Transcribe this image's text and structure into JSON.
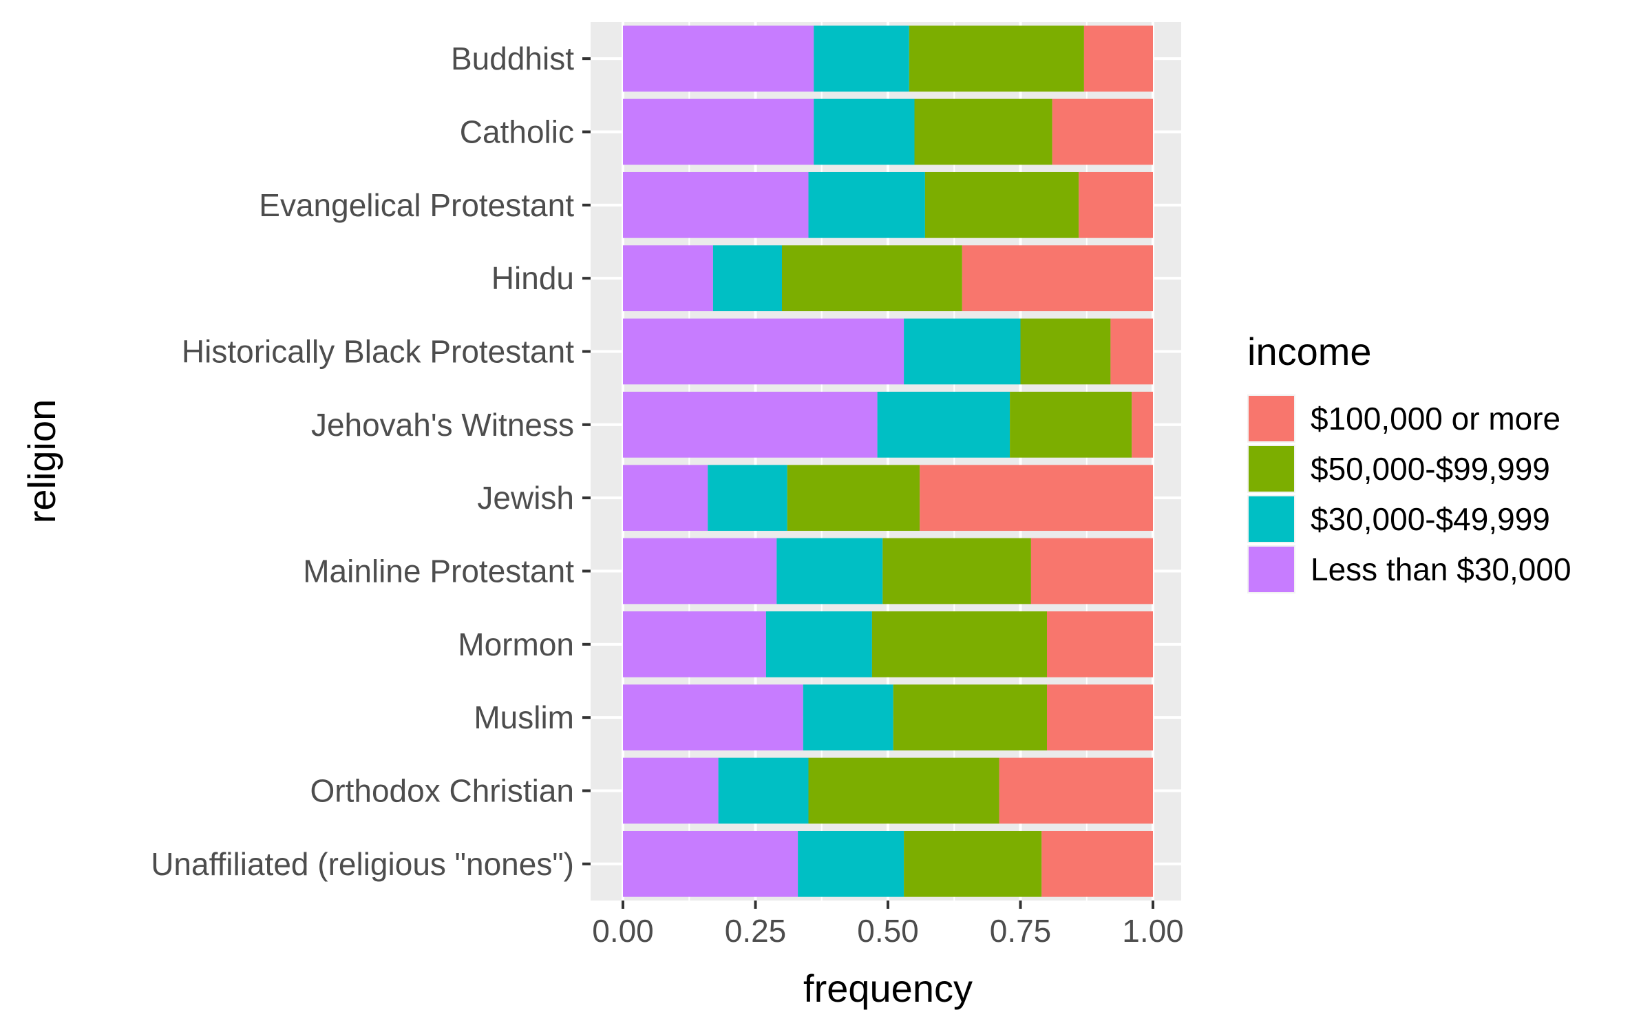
{
  "chart_data": {
    "type": "bar",
    "orientation": "horizontal",
    "stacked": true,
    "xlabel": "frequency",
    "ylabel": "religion",
    "xlim": [
      0,
      1
    ],
    "x_ticks": [
      "0.00",
      "0.25",
      "0.50",
      "0.75",
      "1.00"
    ],
    "grid": true,
    "legend_position": "right",
    "legend_title": "income",
    "categories": [
      "Buddhist",
      "Catholic",
      "Evangelical Protestant",
      "Hindu",
      "Historically Black Protestant",
      "Jehovah's Witness",
      "Jewish",
      "Mainline Protestant",
      "Mormon",
      "Muslim",
      "Orthodox Christian",
      "Unaffiliated (religious \"nones\")"
    ],
    "series": [
      {
        "name": "Less than $30,000",
        "color": "#C77CFF",
        "values": [
          0.36,
          0.36,
          0.35,
          0.17,
          0.53,
          0.48,
          0.16,
          0.29,
          0.27,
          0.34,
          0.18,
          0.33
        ]
      },
      {
        "name": "$30,000-$49,999",
        "color": "#00BFC4",
        "values": [
          0.18,
          0.19,
          0.22,
          0.13,
          0.22,
          0.25,
          0.15,
          0.2,
          0.2,
          0.17,
          0.17,
          0.2
        ]
      },
      {
        "name": "$50,000-$99,999",
        "color": "#7CAE00",
        "values": [
          0.33,
          0.26,
          0.29,
          0.34,
          0.17,
          0.23,
          0.25,
          0.28,
          0.33,
          0.29,
          0.36,
          0.26
        ]
      },
      {
        "name": "$100,000 or more",
        "color": "#F8766D",
        "values": [
          0.13,
          0.19,
          0.14,
          0.36,
          0.08,
          0.04,
          0.44,
          0.23,
          0.2,
          0.2,
          0.29,
          0.21
        ]
      }
    ],
    "legend_order": [
      "$100,000 or more",
      "$50,000-$99,999",
      "$30,000-$49,999",
      "Less than $30,000"
    ],
    "panel_background": "#EBEBEB",
    "grid_color": "#FFFFFF"
  }
}
